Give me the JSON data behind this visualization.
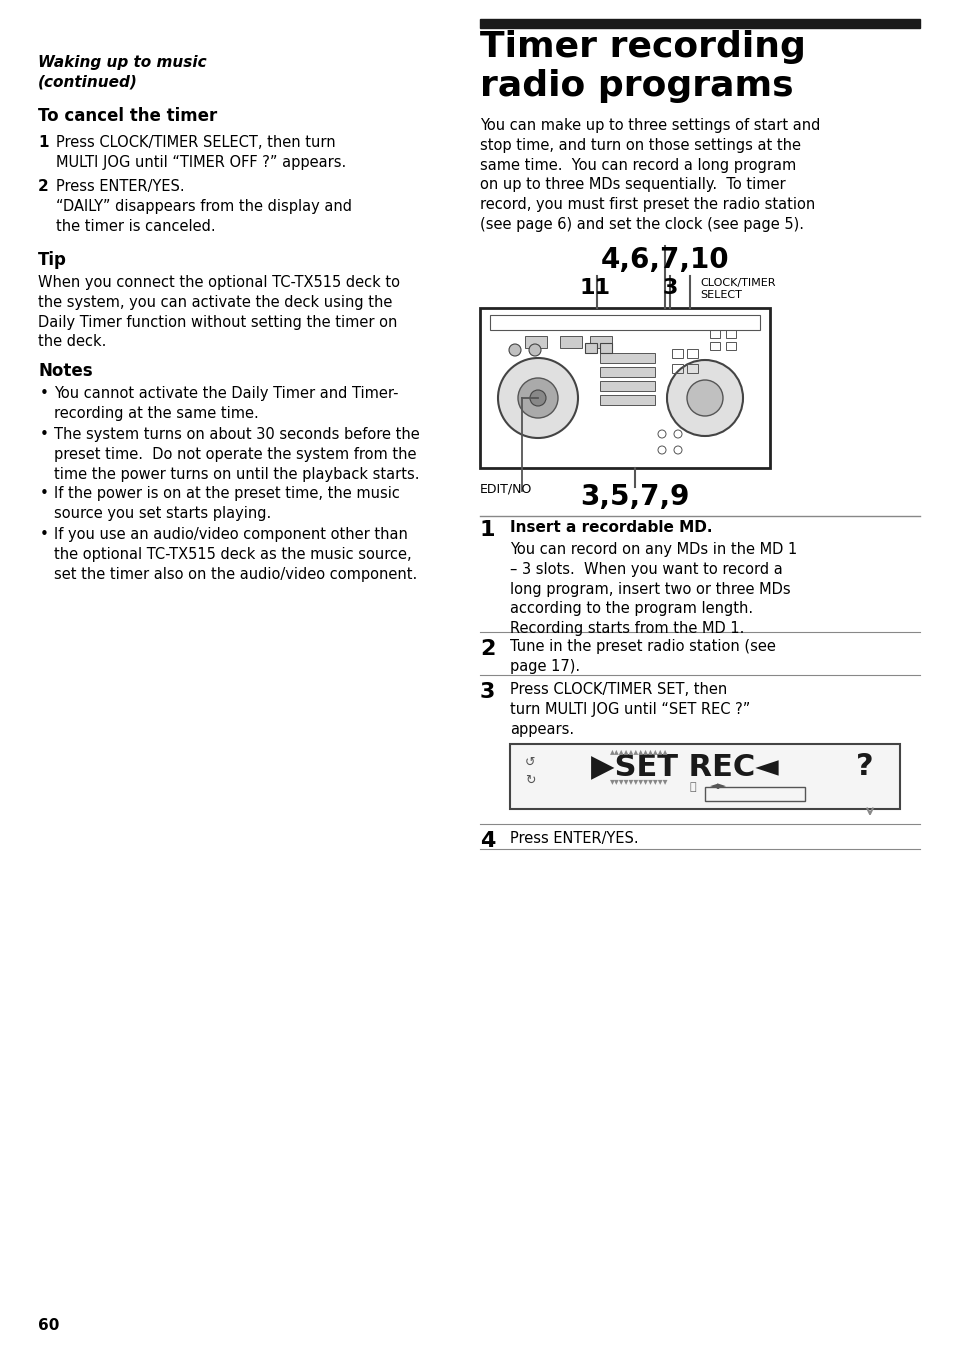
{
  "page_number": "60",
  "left_col": {
    "section_title_italic_bold": "Waking up to music\n(continued)",
    "subsection1_title": "To cancel the timer",
    "steps_cancel": [
      {
        "num": "1",
        "text": "Press CLOCK/TIMER SELECT, then turn\nMULTI JOG until “TIMER OFF ?” appears."
      },
      {
        "num": "2",
        "text": "Press ENTER/YES.\n“DAILY” disappears from the display and\nthe timer is canceled."
      }
    ],
    "tip_title": "Tip",
    "tip_text": "When you connect the optional TC-TX515 deck to\nthe system, you can activate the deck using the\nDaily Timer function without setting the timer on\nthe deck.",
    "notes_title": "Notes",
    "notes": [
      "You cannot activate the Daily Timer and Timer-\nrecording at the same time.",
      "The system turns on about 30 seconds before the\npreset time.  Do not operate the system from the\ntime the power turns on until the playback starts.",
      "If the power is on at the preset time, the music\nsource you set starts playing.",
      "If you use an audio/video component other than\nthe optional TC-TX515 deck as the music source,\nset the timer also on the audio/video component."
    ]
  },
  "right_col": {
    "section_bar_color": "#1a1a1a",
    "section_title": "Timer recording\nradio programs",
    "intro_text": "You can make up to three settings of start and\nstop time, and turn on those settings at the\nsame time.  You can record a long program\non up to three MDs sequentially.  To timer\nrecord, you must first preset the radio station\n(see page 6) and set the clock (see page 5).",
    "button_label_top": "4,6,7,10",
    "button_label_11": "11",
    "button_label_3": "3",
    "button_label_clock": "CLOCK/TIMER\nSELECT",
    "button_label_edit": "EDIT/NO",
    "button_label_bottom": "3,5,7,9",
    "steps": [
      {
        "num": "1",
        "title": "Insert a recordable MD.",
        "text": "You can record on any MDs in the MD 1\n– 3 slots.  When you want to record a\nlong program, insert two or three MDs\naccording to the program length.\nRecording starts from the MD 1."
      },
      {
        "num": "2",
        "title": "",
        "text": "Tune in the preset radio station (see\npage 17)."
      },
      {
        "num": "3",
        "title": "",
        "text": "Press CLOCK/TIMER SET, then\nturn MULTI JOG until “SET REC ?”\nappears."
      },
      {
        "num": "4",
        "title": "",
        "text": "Press ENTER/YES."
      }
    ]
  },
  "bg_color": "#ffffff",
  "text_color": "#000000",
  "divider_color": "#888888"
}
